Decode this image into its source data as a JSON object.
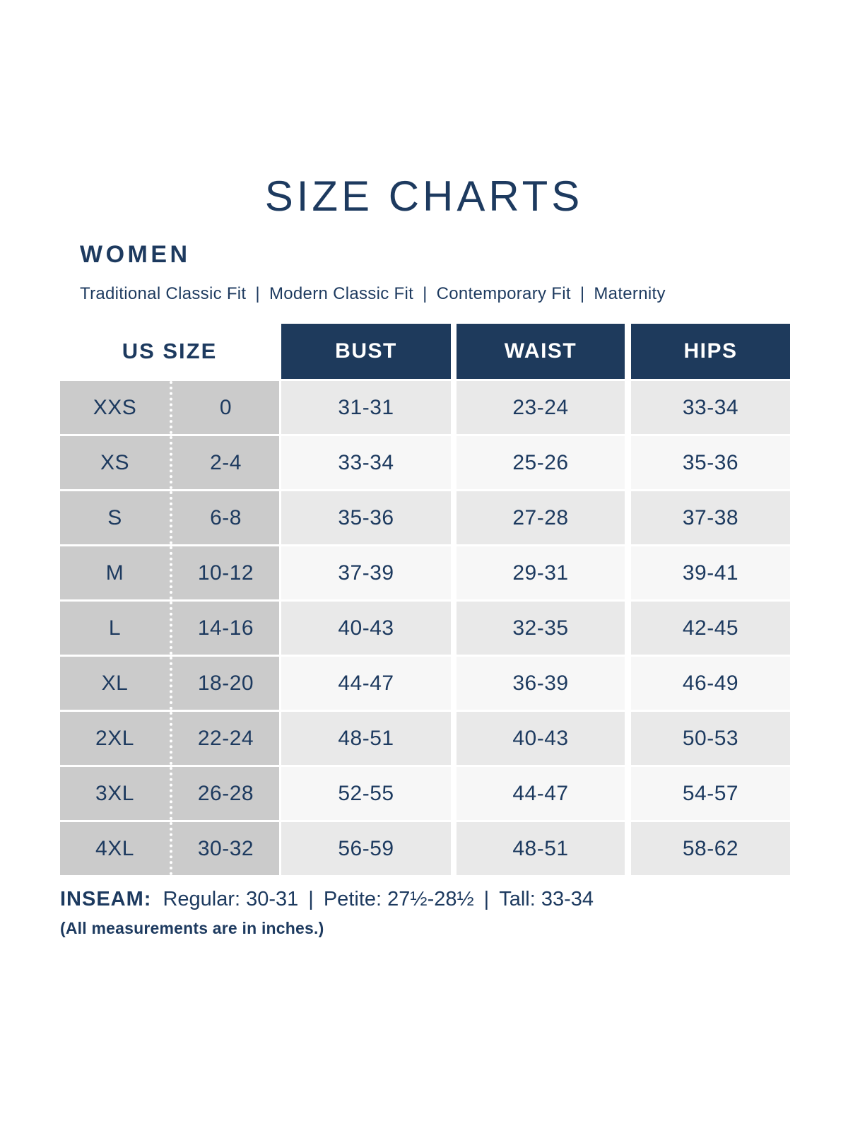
{
  "page": {
    "title": "SIZE CHARTS",
    "section": "WOMEN",
    "fits": [
      "Traditional Classic Fit",
      "Modern Classic Fit",
      "Contemporary Fit",
      "Maternity"
    ],
    "fit_separator": "|"
  },
  "table": {
    "headers": {
      "us_size": "US SIZE",
      "bust": "BUST",
      "waist": "WAIST",
      "hips": "HIPS"
    },
    "rows": [
      {
        "size": "XXS",
        "us": "0",
        "bust": "31-31",
        "waist": "23-24",
        "hips": "33-34"
      },
      {
        "size": "XS",
        "us": "2-4",
        "bust": "33-34",
        "waist": "25-26",
        "hips": "35-36"
      },
      {
        "size": "S",
        "us": "6-8",
        "bust": "35-36",
        "waist": "27-28",
        "hips": "37-38"
      },
      {
        "size": "M",
        "us": "10-12",
        "bust": "37-39",
        "waist": "29-31",
        "hips": "39-41"
      },
      {
        "size": "L",
        "us": "14-16",
        "bust": "40-43",
        "waist": "32-35",
        "hips": "42-45"
      },
      {
        "size": "XL",
        "us": "18-20",
        "bust": "44-47",
        "waist": "36-39",
        "hips": "46-49"
      },
      {
        "size": "2XL",
        "us": "22-24",
        "bust": "48-51",
        "waist": "40-43",
        "hips": "50-53"
      },
      {
        "size": "3XL",
        "us": "26-28",
        "bust": "52-55",
        "waist": "44-47",
        "hips": "54-57"
      },
      {
        "size": "4XL",
        "us": "30-32",
        "bust": "56-59",
        "waist": "48-51",
        "hips": "58-62"
      }
    ]
  },
  "inseam": {
    "label": "INSEAM:",
    "separator": "|",
    "options": [
      {
        "name": "Regular:",
        "value": "30-31"
      },
      {
        "name": "Petite:",
        "value": "27½-28½"
      },
      {
        "name": "Tall:",
        "value": "33-34"
      }
    ]
  },
  "footnote": "(All measurements are in inches.)",
  "colors": {
    "navy_text": "#1d3a5f",
    "header_bg": "#1e3a5c",
    "header_text": "#ffffff",
    "size_column_gray": "#cbcbcb",
    "row_shade_light": "#e9e9e9",
    "row_shade_lighter": "#f7f7f7"
  },
  "chart_data": {
    "type": "table",
    "title": "SIZE CHARTS",
    "subtitle": "WOMEN — Traditional Classic Fit | Modern Classic Fit | Contemporary Fit | Maternity",
    "columns": [
      "SIZE",
      "US SIZE",
      "BUST",
      "WAIST",
      "HIPS"
    ],
    "rows": [
      [
        "XXS",
        "0",
        "31-31",
        "23-24",
        "33-34"
      ],
      [
        "XS",
        "2-4",
        "33-34",
        "25-26",
        "35-36"
      ],
      [
        "S",
        "6-8",
        "35-36",
        "27-28",
        "37-38"
      ],
      [
        "M",
        "10-12",
        "37-39",
        "29-31",
        "39-41"
      ],
      [
        "L",
        "14-16",
        "40-43",
        "32-35",
        "42-45"
      ],
      [
        "XL",
        "18-20",
        "44-47",
        "36-39",
        "46-49"
      ],
      [
        "2XL",
        "22-24",
        "48-51",
        "40-43",
        "50-53"
      ],
      [
        "3XL",
        "26-28",
        "52-55",
        "44-47",
        "54-57"
      ],
      [
        "4XL",
        "30-32",
        "56-59",
        "48-51",
        "58-62"
      ]
    ],
    "notes": [
      "INSEAM: Regular: 30-31 | Petite: 27½-28½ | Tall: 33-34",
      "(All measurements are in inches.)"
    ]
  }
}
